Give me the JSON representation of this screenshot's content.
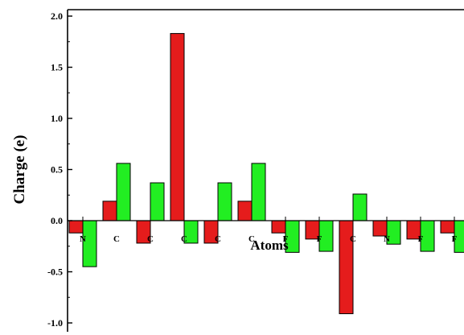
{
  "chart_data": {
    "type": "bar",
    "title": "",
    "xlabel": "Atoms",
    "ylabel": "Charge (e)",
    "categories": [
      "N",
      "C",
      "C",
      "C",
      "C",
      "C",
      "F",
      "F",
      "C",
      "N",
      "F",
      "F"
    ],
    "series": [
      {
        "color": "#e51c1c",
        "values": [
          -0.12,
          0.19,
          -0.22,
          1.83,
          -0.22,
          0.19,
          -0.12,
          -0.18,
          -0.91,
          -0.15,
          -0.18,
          -0.12
        ]
      },
      {
        "color": "#22ee22",
        "values": [
          -0.45,
          0.56,
          0.37,
          -0.22,
          0.37,
          0.56,
          -0.31,
          -0.3,
          0.26,
          -0.23,
          -0.3,
          -0.31
        ]
      }
    ],
    "y_ticks": [
      "2.0",
      "1.5",
      "1.0",
      "0.5",
      "0.0",
      "-0.5",
      "-1.0"
    ],
    "ylim": [
      -1.05,
      2.05
    ],
    "grid": false,
    "legend": "none"
  }
}
